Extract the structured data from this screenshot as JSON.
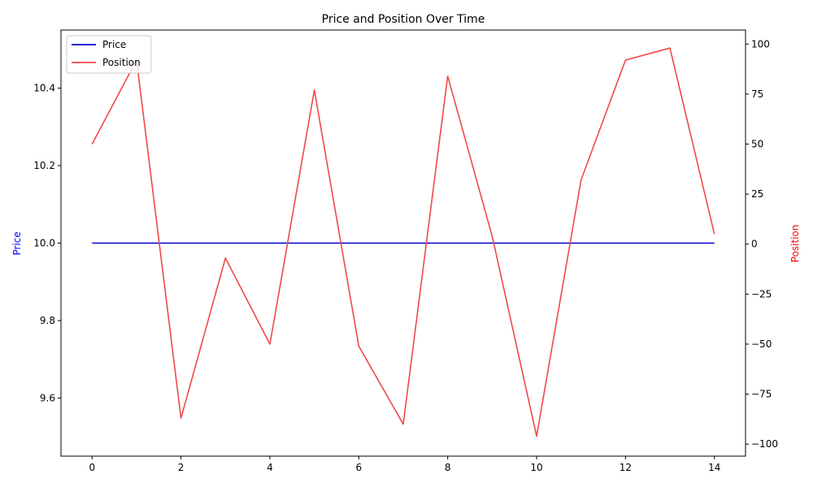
{
  "chart_data": {
    "type": "line",
    "title": "Price and Position Over Time",
    "xlabel": "",
    "x": [
      0,
      1,
      2,
      3,
      4,
      5,
      6,
      7,
      8,
      9,
      10,
      11,
      12,
      13,
      14
    ],
    "xlim": [
      -0.7,
      14.7
    ],
    "x_ticks": [
      0,
      2,
      4,
      6,
      8,
      10,
      12,
      14
    ],
    "legend_position": "top-left",
    "grid": false,
    "axes": {
      "left": {
        "label": "Price",
        "label_color": "#0000ff",
        "ylim": [
          9.45,
          10.55
        ],
        "ticks": [
          9.6,
          9.8,
          10.0,
          10.2,
          10.4
        ],
        "tick_labels": [
          "9.6",
          "9.8",
          "10.0",
          "10.2",
          "10.4"
        ]
      },
      "right": {
        "label": "Position",
        "label_color": "#ff0000",
        "ylim": [
          -106,
          107
        ],
        "ticks": [
          -100,
          -75,
          -50,
          -25,
          0,
          25,
          50,
          75,
          100
        ],
        "tick_labels": [
          "−100",
          "−75",
          "−50",
          "−25",
          "0",
          "25",
          "50",
          "75",
          "100"
        ]
      }
    },
    "series": [
      {
        "name": "Price",
        "axis": "left",
        "color": "#0000cc",
        "values": [
          10.0,
          10.0,
          10.0,
          10.0,
          10.0,
          10.0,
          10.0,
          10.0,
          10.0,
          10.0,
          10.0,
          10.0,
          10.0,
          10.0,
          10.0
        ]
      },
      {
        "name": "Position",
        "axis": "right",
        "color": "#f04848",
        "values": [
          50,
          92,
          -87,
          -7,
          -50,
          77,
          -51,
          -90,
          84,
          4,
          -96,
          32,
          92,
          98,
          5
        ]
      }
    ]
  }
}
